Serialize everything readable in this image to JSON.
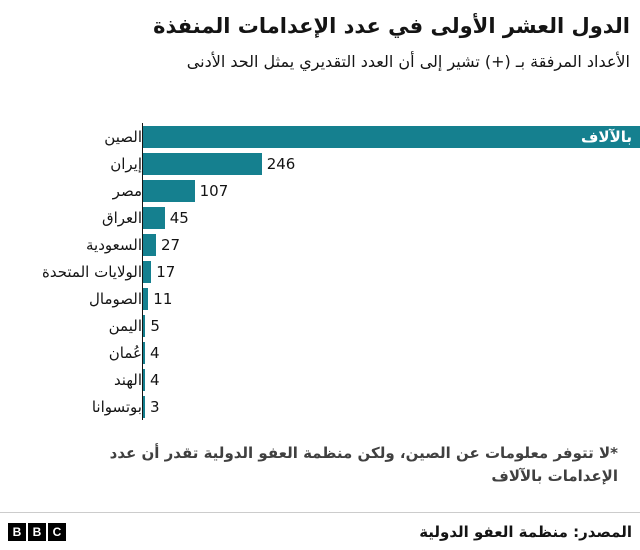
{
  "header": {
    "title": "الدول العشر الأولى في عدد الإعدامات المنفذة",
    "subtitle": "الأعداد المرفقة بـ (+) تشير إلى أن العدد التقديري يمثل الحد الأدنى"
  },
  "chart_data": {
    "type": "bar",
    "orientation": "horizontal",
    "title": "الدول العشر الأولى في عدد الإعدامات المنفذة",
    "categories": [
      "الصين",
      "إيران",
      "مصر",
      "العراق",
      "السعودية",
      "الولايات المتحدة",
      "الصومال",
      "اليمن",
      "عُمان",
      "الهند",
      "بوتسوانا"
    ],
    "values": [
      null,
      246,
      107,
      45,
      27,
      17,
      11,
      5,
      4,
      4,
      3
    ],
    "value_labels": [
      "بالآلاف",
      "246",
      "107",
      "45",
      "27",
      "17",
      "11",
      "5",
      "4",
      "4",
      "3"
    ],
    "china_bar_full_width": true,
    "china_inside_label": "بالآلاف",
    "axis_max_for_scale": 1030,
    "bar_color": "#15808F",
    "grid": false,
    "legend": false
  },
  "footnote": "*لا تتوفر معلومات عن الصين، ولكن منظمة العفو الدولية تقدر أن عدد الإعدامات بالآلاف",
  "footer": {
    "logo_letters": [
      "B",
      "B",
      "C"
    ],
    "source": "المصدر: منظمة العفو الدولية"
  }
}
